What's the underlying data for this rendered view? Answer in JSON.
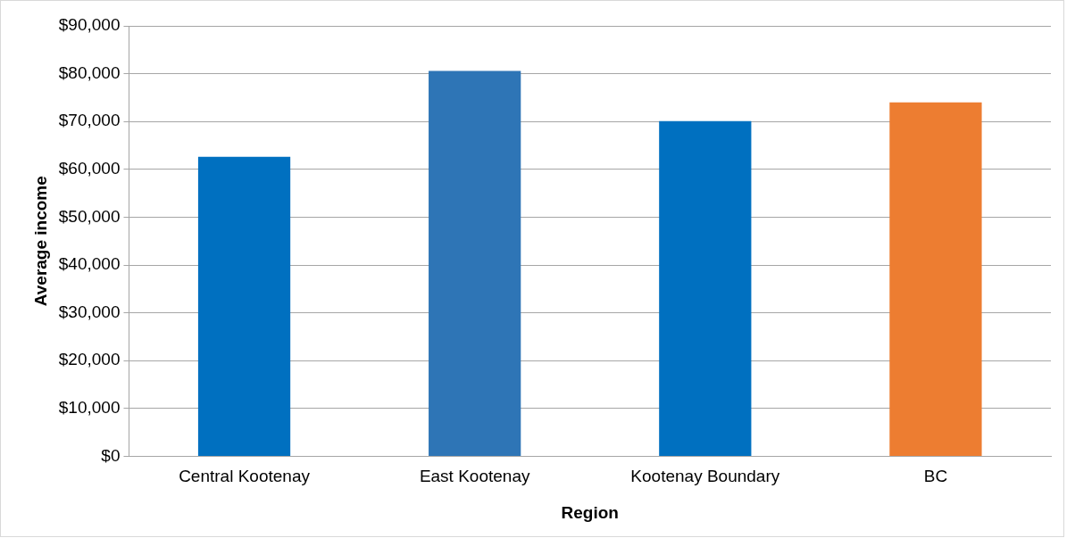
{
  "chart_data": {
    "type": "bar",
    "xlabel": "Region",
    "ylabel": "Average income",
    "categories": [
      "Central Kootenay",
      "East Kootenay",
      "Kootenay Boundary",
      "BC"
    ],
    "values": [
      62600,
      80600,
      70100,
      74000
    ],
    "colors": [
      "#0070c0",
      "#2e75b6",
      "#0070c0",
      "#ed7d31"
    ],
    "ylim": [
      0,
      90000
    ],
    "yticks": [
      {
        "value": 0,
        "label": "$0"
      },
      {
        "value": 10000,
        "label": "$10,000"
      },
      {
        "value": 20000,
        "label": "$20,000"
      },
      {
        "value": 30000,
        "label": "$30,000"
      },
      {
        "value": 40000,
        "label": "$40,000"
      },
      {
        "value": 50000,
        "label": "$50,000"
      },
      {
        "value": 60000,
        "label": "$60,000"
      },
      {
        "value": 70000,
        "label": "$70,000"
      },
      {
        "value": 80000,
        "label": "$80,000"
      },
      {
        "value": 90000,
        "label": "$90,000"
      }
    ],
    "grid": "y",
    "legend": false
  }
}
